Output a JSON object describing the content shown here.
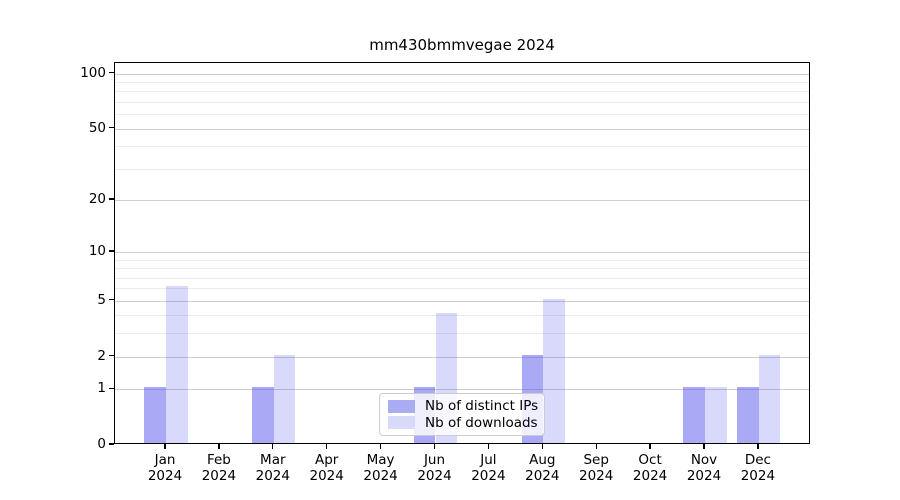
{
  "title": "mm430bmmvegae 2024",
  "colors": {
    "distinct_ips_bar": "#a9abf3",
    "downloads_bar": "#d9daf9",
    "bar_base_rgba_ips": "rgba(70,70,235,0.465)",
    "bar_base_rgba_downloads": "rgba(70,70,235,0.205)",
    "grid_major": "#cfcfcf",
    "grid_minor": "#ebebeb",
    "axis": "#000000",
    "legend_border": "#cccccc",
    "text": "#000000"
  },
  "chart_data": {
    "type": "bar",
    "title": "mm430bmmvegae 2024",
    "categories": [
      "Jan",
      "Feb",
      "Mar",
      "Apr",
      "May",
      "Jun",
      "Jul",
      "Aug",
      "Sep",
      "Oct",
      "Nov",
      "Dec"
    ],
    "category_year": "2024",
    "series": [
      {
        "name": "Nb of distinct IPs",
        "color": "#a9abf3",
        "fill": "rgba(70,70,235,0.465)",
        "values": [
          1,
          0,
          1,
          0,
          0,
          1,
          0,
          2,
          0,
          0,
          1,
          1
        ]
      },
      {
        "name": "Nb of downloads",
        "color": "#d9daf9",
        "fill": "rgba(70,70,235,0.205)",
        "values": [
          6,
          0,
          2,
          0,
          0,
          4,
          0,
          5,
          0,
          0,
          1,
          2
        ]
      }
    ],
    "y_axis": {
      "scale": "log1p",
      "ticks": [
        0,
        1,
        2,
        5,
        10,
        20,
        50,
        100
      ],
      "minor_ticks": [
        3,
        4,
        6,
        7,
        8,
        9,
        30,
        40,
        60,
        70,
        80,
        90
      ],
      "ylim": [
        0,
        114
      ]
    },
    "grid": "on",
    "legend_position": "lower center"
  }
}
